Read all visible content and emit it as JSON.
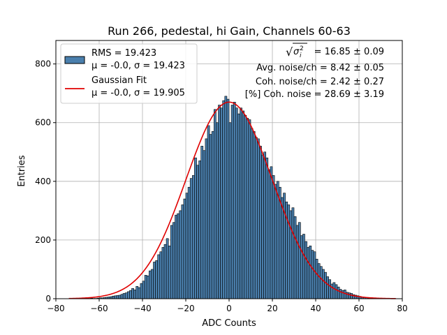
{
  "chart_data": {
    "type": "bar",
    "title": "Run 266, pedestal, hi Gain, Channels 60-63",
    "xlabel": "ADC Counts",
    "ylabel": "Entries",
    "xlim": [
      -80,
      80
    ],
    "ylim": [
      0,
      880
    ],
    "xticks": [
      -80,
      -60,
      -40,
      -20,
      0,
      20,
      40,
      60,
      80
    ],
    "yticks": [
      0,
      200,
      400,
      600,
      800
    ],
    "grid": true,
    "legend_position": "top-left",
    "histogram": {
      "name_lines": [
        "RMS = 19.423",
        "μ = -0.0, σ = 19.423"
      ],
      "bin_width": 1,
      "bin_start": -70,
      "values": [
        1,
        1,
        1,
        1,
        0,
        1,
        2,
        1,
        1,
        2,
        3,
        3,
        4,
        5,
        6,
        7,
        9,
        10,
        11,
        12,
        15,
        18,
        20,
        24,
        28,
        35,
        30,
        42,
        38,
        52,
        60,
        80,
        78,
        95,
        100,
        125,
        130,
        150,
        160,
        175,
        185,
        205,
        180,
        250,
        260,
        285,
        290,
        300,
        320,
        340,
        360,
        380,
        410,
        420,
        480,
        455,
        470,
        520,
        505,
        545,
        590,
        560,
        570,
        645,
        600,
        660,
        650,
        675,
        690,
        680,
        600,
        660,
        670,
        650,
        630,
        650,
        640,
        625,
        615,
        610,
        580,
        570,
        550,
        545,
        520,
        490,
        500,
        480,
        440,
        450,
        420,
        390,
        400,
        380,
        345,
        360,
        330,
        320,
        300,
        310,
        280,
        250,
        260,
        215,
        220,
        195,
        175,
        180,
        165,
        160,
        135,
        120,
        110,
        100,
        90,
        75,
        65,
        50,
        55,
        48,
        40,
        32,
        28,
        30,
        22,
        20,
        18,
        14,
        12,
        10,
        8,
        6,
        5,
        3,
        2,
        1,
        1,
        1,
        1,
        1,
        0
      ],
      "fill": "#4a7fad",
      "edge": "#000000"
    },
    "fit": {
      "name_lines": [
        "Gaussian Fit",
        "μ = -0.0, σ = 19.905"
      ],
      "mu": 0.0,
      "sigma": 19.905,
      "amplitude": 670,
      "x_range": [
        -74,
        77
      ],
      "color": "#e00000"
    },
    "annotations": [
      "Avg. noise/ch = 8.42 ± 0.05",
      "Coh. noise/ch = 2.42 ± 0.27",
      "[%] Coh. noise = 28.69 ± 3.19"
    ],
    "sigma_annotation": {
      "sqrt_sign": "√",
      "symbol": "σ",
      "subscript": "i",
      "superscript": "2",
      "value": "= 16.85 ± 0.09"
    }
  }
}
